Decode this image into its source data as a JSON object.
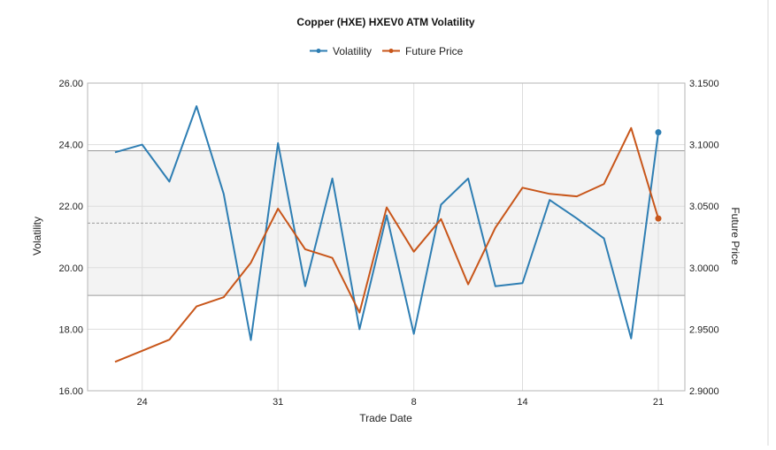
{
  "chart_data": {
    "type": "line",
    "title": "Copper (HXE) HXEV0 ATM Volatility",
    "xlabel": "Trade Date",
    "ylabel": "Volatility",
    "y2label": "Future Price",
    "x_ticks": [
      {
        "label": "24",
        "index": 1
      },
      {
        "label": "31",
        "index": 6
      },
      {
        "label": "8",
        "index": 11
      },
      {
        "label": "14",
        "index": 15
      },
      {
        "label": "21",
        "index": 20
      }
    ],
    "ylim": [
      16,
      26
    ],
    "y_ticks": [
      "16.00",
      "18.00",
      "20.00",
      "22.00",
      "24.00",
      "26.00"
    ],
    "y2lim": [
      2.9,
      3.15
    ],
    "y2_ticks": [
      "2.9000",
      "2.9500",
      "3.0000",
      "3.0500",
      "3.1000",
      "3.1500"
    ],
    "band": {
      "upper": 23.8,
      "lower": 19.1,
      "mean": 21.45
    },
    "grid": true,
    "legend_position": "top-center",
    "series": [
      {
        "name": "Volatility",
        "axis": "left",
        "color": "#2e7eb3",
        "values": [
          23.75,
          24.0,
          22.8,
          25.25,
          22.4,
          17.65,
          24.05,
          19.4,
          22.9,
          18.0,
          21.7,
          17.85,
          22.05,
          22.9,
          19.4,
          19.5,
          22.2,
          21.6,
          20.95,
          17.7,
          24.4
        ]
      },
      {
        "name": "Future Price",
        "axis": "right",
        "color": "#c8561a",
        "values": [
          2.9235,
          2.9325,
          2.9415,
          2.9685,
          2.976,
          3.004,
          3.048,
          3.015,
          3.008,
          2.9635,
          3.049,
          3.013,
          3.0395,
          2.9865,
          3.0325,
          3.065,
          3.06,
          3.058,
          3.068,
          3.1135,
          3.04
        ]
      }
    ]
  }
}
